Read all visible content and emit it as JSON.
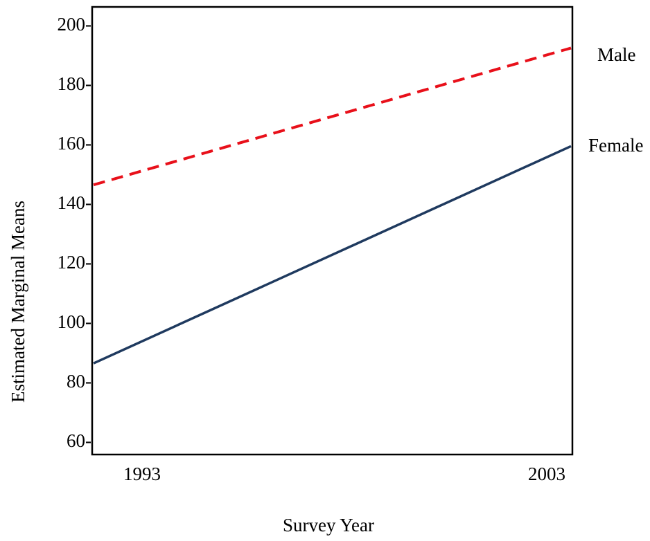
{
  "chart_data": {
    "type": "line",
    "title": "",
    "xlabel": "Survey Year",
    "ylabel": "Estimated Marginal  Means",
    "x": [
      1993,
      2003
    ],
    "x_tick_labels": [
      "1993",
      "2003"
    ],
    "y_ticks": [
      60,
      80,
      100,
      120,
      140,
      160,
      180,
      200
    ],
    "y_tick_labels": [
      "60-",
      "80-",
      "100-",
      "120-",
      "140-",
      "160-",
      "180-",
      "200-"
    ],
    "ylim": [
      56,
      204
    ],
    "grid": false,
    "legend": "inline labels at right end of lines",
    "series": [
      {
        "name": "Male",
        "values": [
          146,
          192
        ],
        "color": "#e8101a",
        "style": "dashed"
      },
      {
        "name": "Female",
        "values": [
          86,
          159
        ],
        "color": "#1f3a5f",
        "style": "solid"
      }
    ]
  }
}
